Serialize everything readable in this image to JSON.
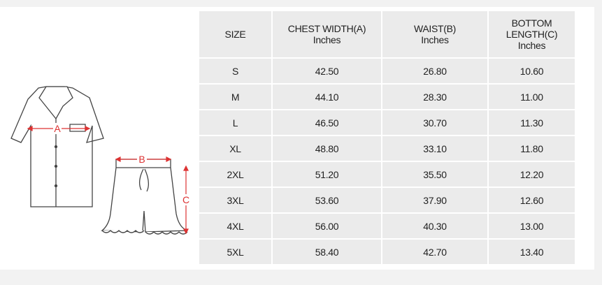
{
  "illustration": {
    "labels": [
      "A",
      "B",
      "C"
    ]
  },
  "table": {
    "headers": [
      [
        "SIZE"
      ],
      [
        "CHEST WIDTH(A)",
        "Inches"
      ],
      [
        "WAIST(B)",
        "Inches"
      ],
      [
        "BOTTOM",
        "LENGTH(C)",
        "Inches"
      ]
    ],
    "rows": [
      [
        "S",
        "42.50",
        "26.80",
        "10.60"
      ],
      [
        "M",
        "44.10",
        "28.30",
        "11.00"
      ],
      [
        "L",
        "46.50",
        "30.70",
        "11.30"
      ],
      [
        "XL",
        "48.80",
        "33.10",
        "11.80"
      ],
      [
        "2XL",
        "51.20",
        "35.50",
        "12.20"
      ],
      [
        "3XL",
        "53.60",
        "37.90",
        "12.60"
      ],
      [
        "4XL",
        "56.00",
        "40.30",
        "13.00"
      ],
      [
        "5XL",
        "58.40",
        "42.70",
        "13.40"
      ]
    ]
  }
}
